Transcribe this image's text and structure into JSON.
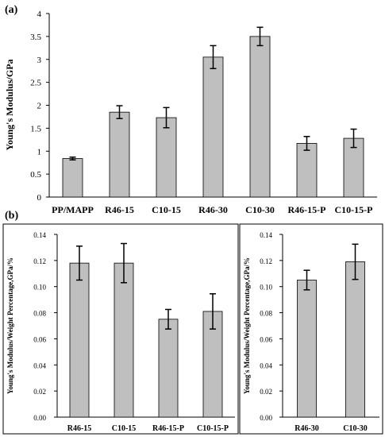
{
  "panels": {
    "a": "(a)",
    "b": "(b)"
  },
  "colors": {
    "bar_fill": "#bfbfbf",
    "bar_stroke": "#000000"
  },
  "chart_data": [
    {
      "type": "bar",
      "panel": "a",
      "categories": [
        "PP/MAPP",
        "R46-15",
        "C10-15",
        "R46-30",
        "C10-30",
        "R46-15-P",
        "C10-15-P"
      ],
      "values": [
        0.84,
        1.85,
        1.73,
        3.05,
        3.5,
        1.17,
        1.28
      ],
      "errors": [
        0.03,
        0.14,
        0.22,
        0.25,
        0.2,
        0.15,
        0.2
      ],
      "ylabel": "Young's Modulus/GPa",
      "ylim": [
        0,
        4
      ],
      "yticks": [
        "0",
        "0.5",
        "1",
        "1.5",
        "2",
        "2.5",
        "3",
        "3.5",
        "4"
      ],
      "grid": false
    },
    {
      "type": "bar",
      "panel": "b-left",
      "categories": [
        "R46-15",
        "C10-15",
        "R46-15-P",
        "C10-15-P"
      ],
      "values": [
        0.118,
        0.118,
        0.075,
        0.081
      ],
      "errors": [
        0.013,
        0.015,
        0.0075,
        0.0135
      ],
      "ylabel": "Young's Modulus/Weight Percentage,GPa/%",
      "ylim": [
        0,
        0.14
      ],
      "yticks": [
        "0.00",
        "0.02",
        "0.04",
        "0.06",
        "0.08",
        "0.10",
        "0.12",
        "0.14"
      ],
      "grid": false
    },
    {
      "type": "bar",
      "panel": "b-right",
      "categories": [
        "R46-30",
        "C10-30"
      ],
      "values": [
        0.105,
        0.119
      ],
      "errors": [
        0.0075,
        0.0135
      ],
      "ylabel": "Young's Modulus/Weight Percentage,GPa/%",
      "ylim": [
        0,
        0.14
      ],
      "yticks": [
        "0.00",
        "0.02",
        "0.04",
        "0.06",
        "0.08",
        "0.10",
        "0.12",
        "0.14"
      ],
      "grid": false
    }
  ]
}
